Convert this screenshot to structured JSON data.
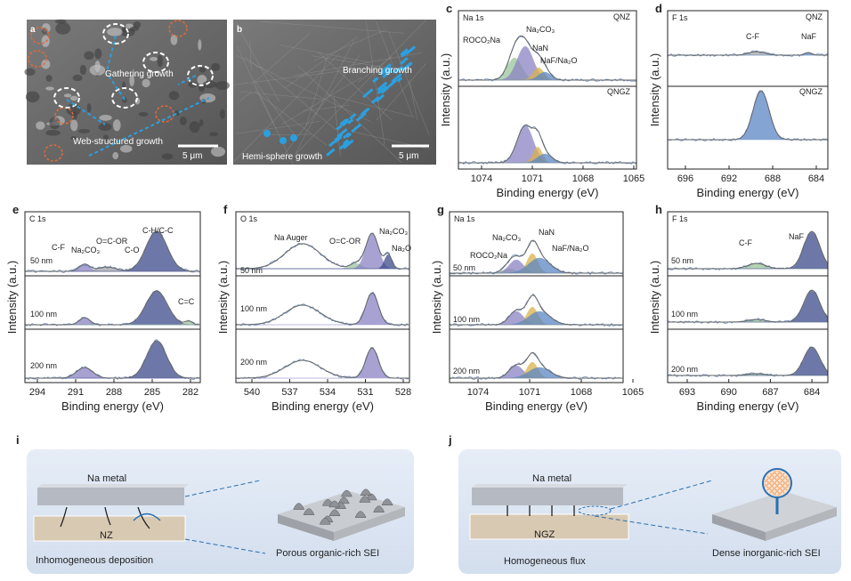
{
  "panels": [
    {
      "label": "a",
      "annotations": [
        "Gathering growth",
        "Web-structured growth"
      ],
      "scale_bar": "5 μm"
    },
    {
      "label": "b",
      "annotations": [
        "Branching growth",
        "Hemi-sphere growth"
      ],
      "scale_bar": "5 μm"
    },
    {
      "label": "c",
      "element": "Na 1s",
      "samples": [
        "QNZ",
        "QNGZ"
      ],
      "peaks": [
        "ROCO₂Na",
        "Na₂CO₃",
        "NaN",
        "NaF/Na₂O"
      ],
      "xticks": [
        1074,
        1071,
        1068,
        1065
      ],
      "xlabel": "Binding energy (eV)",
      "ylabel": "Intensity (a.u.)"
    },
    {
      "label": "d",
      "element": "F 1s",
      "samples": [
        "QNZ",
        "QNGZ"
      ],
      "peaks": [
        "C-F",
        "NaF"
      ],
      "xticks": [
        696,
        692,
        688,
        684
      ],
      "xlabel": "Binding energy (eV)",
      "ylabel": "Intensity (a.u.)"
    },
    {
      "label": "e",
      "element": "C 1s",
      "depths": [
        "50 nm",
        "100 nm",
        "200 nm"
      ],
      "peaks": [
        "C-F",
        "Na₂CO₃",
        "O=C-OR",
        "C-O",
        "C-H/C-C",
        "C=C"
      ],
      "xticks": [
        294,
        291,
        288,
        285,
        282
      ],
      "xlabel": "Binding energy (eV)",
      "ylabel": "Intensity (a.u.)"
    },
    {
      "label": "f",
      "element": "O 1s",
      "depths": [
        "50 nm",
        "100 nm",
        "200 nm"
      ],
      "peaks": [
        "Na Auger",
        "O=C-OR",
        "Na₂CO₃",
        "Na₂O"
      ],
      "xticks": [
        540,
        537,
        534,
        531,
        528
      ],
      "xlabel": "Binding energy (eV)",
      "ylabel": "Intensity (a.u.)"
    },
    {
      "label": "g",
      "element": "Na 1s",
      "depths": [
        "50 nm",
        "100 nm",
        "200 nm"
      ],
      "peaks": [
        "Na₂CO₃",
        "NaN",
        "ROCO₂Na",
        "NaF/Na₂O"
      ],
      "xticks": [
        1074,
        1071,
        1068,
        1065
      ],
      "xlabel": "Binding energy (eV)",
      "ylabel": "Intensity (a.u.)"
    },
    {
      "label": "h",
      "element": "F 1s",
      "depths": [
        "50 nm",
        "100 nm",
        "200 nm"
      ],
      "peaks": [
        "C-F",
        "NaF"
      ],
      "xticks": [
        693,
        690,
        687,
        684
      ],
      "xlabel": "Binding energy (eV)",
      "ylabel": "Intensity (a.u.)"
    },
    {
      "label": "i",
      "metal": "Na metal",
      "layer": "NZ",
      "process": "Inhomogeneous deposition",
      "sei": "Porous organic-rich SEI"
    },
    {
      "label": "j",
      "metal": "Na metal",
      "layer": "NGZ",
      "process": "Homogeneous flux",
      "sei": "Dense inorganic-rich SEI"
    }
  ]
}
